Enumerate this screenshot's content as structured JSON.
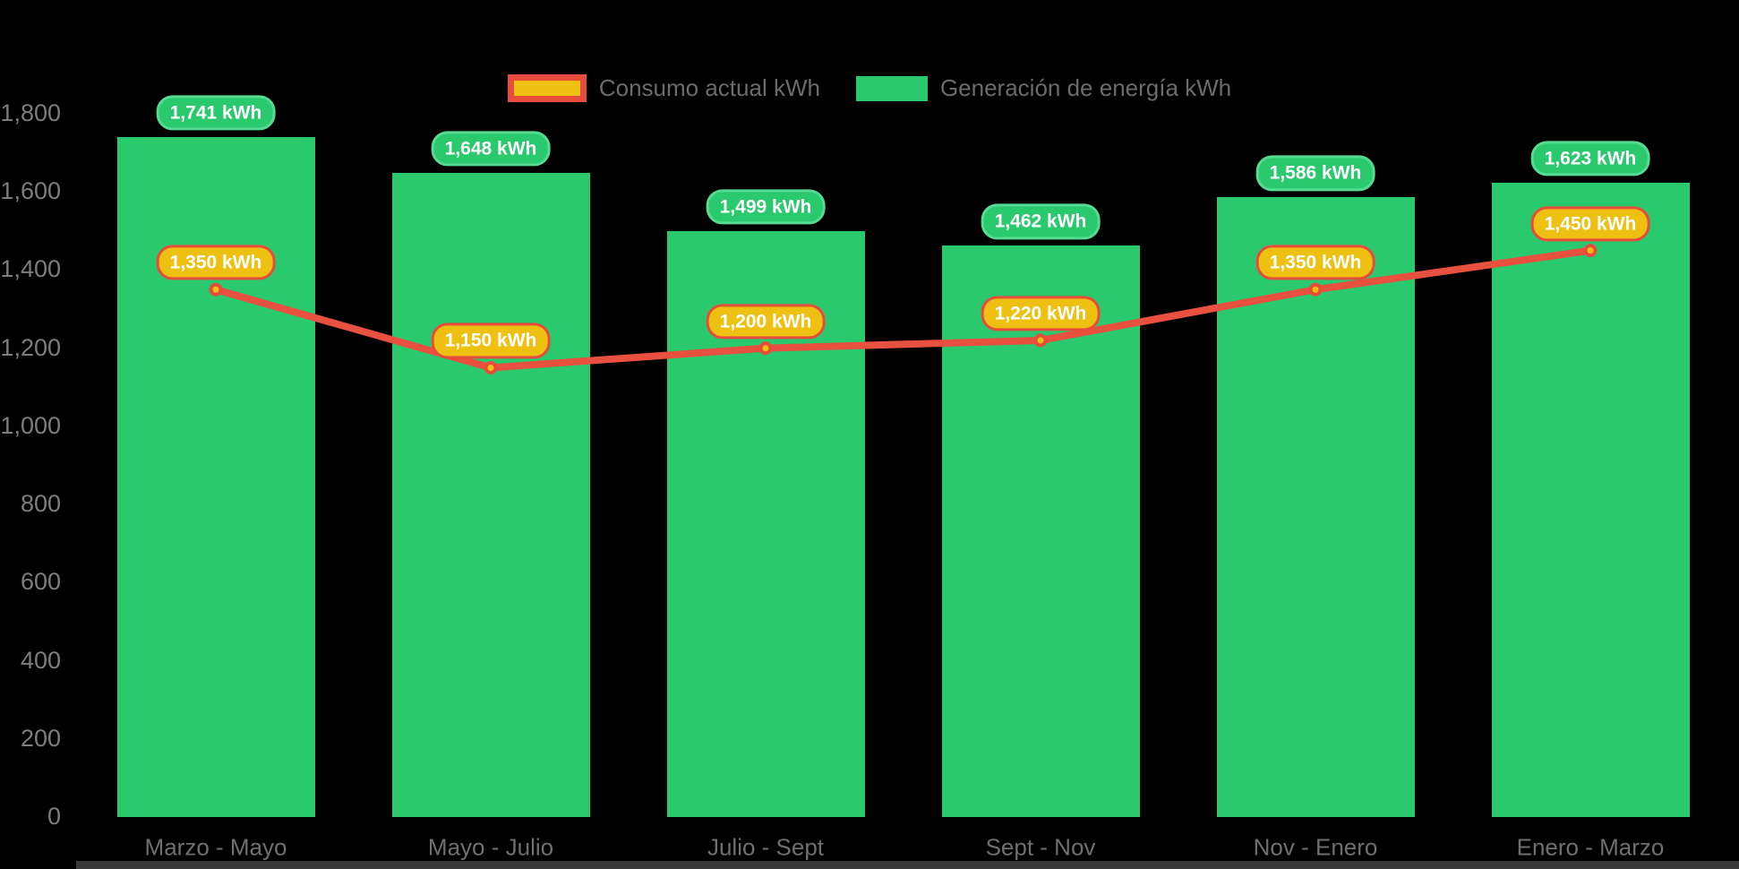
{
  "background_color": "#000000",
  "legend": [
    {
      "label": "Consumo actual kWh",
      "swatch_fill": "#eec011",
      "swatch_border": "#e74c3c"
    },
    {
      "label": "Generación de energía kWh",
      "swatch_fill": "#2bc96e",
      "swatch_border": null
    }
  ],
  "colors": {
    "bar_green": "#2bc96e",
    "bar_label_fill": "#2bc96e",
    "bar_label_border": "#55dc92",
    "line_red": "#e8503f",
    "marker_fill": "#eec011",
    "marker_ring": "#e74c3c",
    "line_label_fill": "#eec011",
    "line_label_border": "#e74c3c",
    "label_text": "#ffffff",
    "axis_text": "#7d7d7d",
    "bottom_bar": "#3a3a3a"
  },
  "chart_data": {
    "type": "bar+line",
    "title": "",
    "categories": [
      "Marzo - Mayo",
      "Mayo - Julio",
      "Julio - Sept",
      "Sept - Nov",
      "Nov - Enero",
      "Enero - Marzo"
    ],
    "series": [
      {
        "name": "Generación de energía kWh",
        "type": "bar",
        "values": [
          1741,
          1648,
          1499,
          1462,
          1586,
          1623
        ],
        "data_labels": [
          "1,741 kWh",
          "1,648 kWh",
          "1,499 kWh",
          "1,462 kWh",
          "1,586 kWh",
          "1,623 kWh"
        ]
      },
      {
        "name": "Consumo actual kWh",
        "type": "line",
        "values": [
          1350,
          1150,
          1200,
          1220,
          1350,
          1450
        ],
        "data_labels": [
          "1,350 kWh",
          "1,150 kWh",
          "1,200 kWh",
          "1,220 kWh",
          "1,350 kWh",
          "1,450 kWh"
        ]
      }
    ],
    "y_ticks": [
      "0",
      "200",
      "400",
      "600",
      "800",
      "1,000",
      "1,200",
      "1,400",
      "1,600",
      "1,800"
    ],
    "ylim": [
      0,
      1800
    ],
    "xlabel": "",
    "ylabel": "",
    "grid": false,
    "legend_position": "top-center"
  }
}
